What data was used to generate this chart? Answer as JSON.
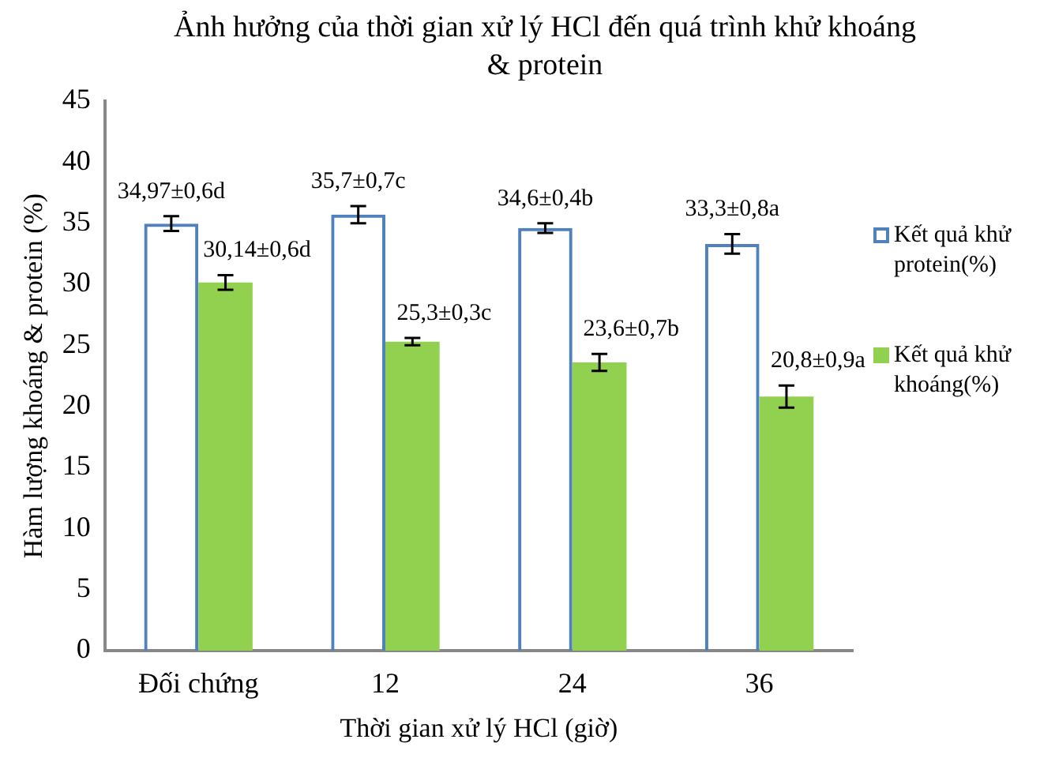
{
  "chart_data": {
    "type": "bar",
    "title": "Ảnh hưởng của thời gian xử lý HCl đến quá trình khử khoáng & protein",
    "xlabel": "Thời gian xử lý HCl (giờ)",
    "ylabel": "Hàm lượng khoáng & protein (%)",
    "categories": [
      "Đối chứng",
      "12",
      "24",
      "36"
    ],
    "series": [
      {
        "name": "Kết quả khử protein(%)",
        "color": "#4f81bd",
        "values": [
          34.97,
          35.7,
          34.6,
          33.3
        ],
        "errors": [
          0.6,
          0.7,
          0.4,
          0.8
        ],
        "value_labels": [
          "34,97±0,6d",
          "35,7±0,7c",
          "34,6±0,4b",
          "33,3±0,8a"
        ]
      },
      {
        "name": "Kết quả khử khoáng(%)",
        "color": "#92d050",
        "values": [
          30.14,
          25.3,
          23.6,
          20.8
        ],
        "errors": [
          0.6,
          0.3,
          0.7,
          0.9
        ],
        "value_labels": [
          "30,14±0,6d",
          "25,3±0,3c",
          "23,6±0,7b",
          "20,8±0,9a"
        ]
      }
    ],
    "ylim": [
      0,
      45
    ],
    "yticks": [
      0,
      5,
      10,
      15,
      20,
      25,
      30,
      35,
      40,
      45
    ],
    "grid": false,
    "legend": "right"
  }
}
